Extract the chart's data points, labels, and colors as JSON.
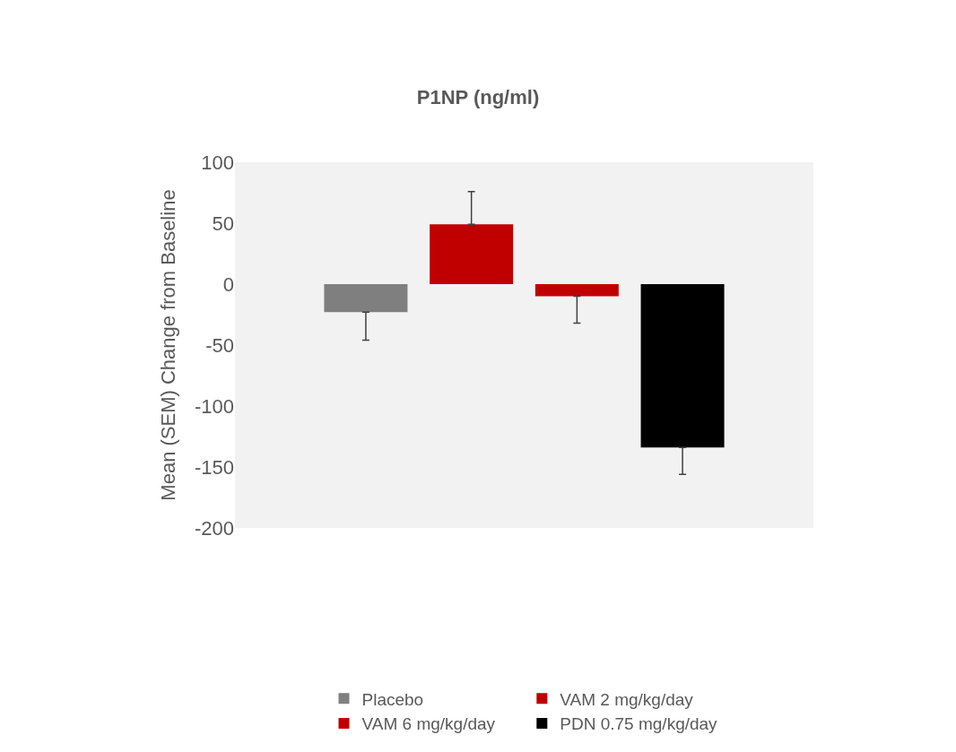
{
  "chart_data": {
    "type": "bar",
    "title": "P1NP (ng/ml)",
    "ylabel": "Mean (SEM) Change from Baseline",
    "categories": [
      null
    ],
    "series": [
      {
        "name": "Placebo",
        "color": "#7f7f7f",
        "values": [
          -23
        ],
        "errors": [
          [
            -46,
            -23
          ]
        ]
      },
      {
        "name": "VAM 2 mg/kg/day",
        "color": "#c00000",
        "values": [
          49
        ],
        "errors": [
          [
            49,
            76
          ]
        ]
      },
      {
        "name": "VAM 6 mg/kg/day",
        "color": "#c00000",
        "values": [
          -10
        ],
        "errors": [
          [
            -32,
            -10
          ]
        ]
      },
      {
        "name": "PDN 0.75 mg/kg/day",
        "color": "#000000",
        "values": [
          -134
        ],
        "errors": [
          [
            -156,
            -134
          ]
        ]
      }
    ],
    "ylim": [
      -200,
      100
    ],
    "yticks": [
      -200,
      -150,
      -100,
      -50,
      0,
      50,
      100
    ],
    "grid": false,
    "legend": "bottom"
  }
}
